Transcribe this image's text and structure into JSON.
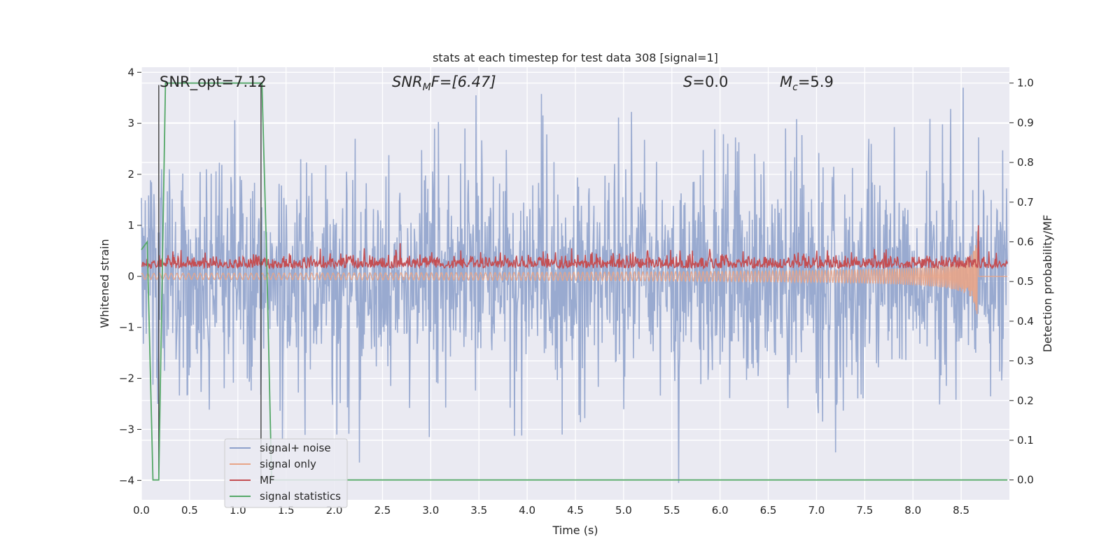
{
  "chart_data": {
    "type": "line",
    "title": "stats at each timestep for test data 308 [signal=1]",
    "xlabel": "Time (s)",
    "ylabel": "Whitened strain",
    "y2label": "Detection probability/MF",
    "xlim": [
      0.0,
      9.0
    ],
    "ylim": [
      -4.38,
      4.1
    ],
    "y2lim": [
      -0.05,
      1.04
    ],
    "xticks": [
      "0.0",
      "0.5",
      "1.0",
      "1.5",
      "2.0",
      "2.5",
      "3.0",
      "3.5",
      "4.0",
      "4.5",
      "5.0",
      "5.5",
      "6.0",
      "6.5",
      "7.0",
      "7.5",
      "8.0",
      "8.5"
    ],
    "yticks": [
      "4",
      "3",
      "2",
      "1",
      "0",
      "−1",
      "−2",
      "−3",
      "−4"
    ],
    "y2ticks": [
      "1.0",
      "0.9",
      "0.8",
      "0.7",
      "0.6",
      "0.5",
      "0.4",
      "0.3",
      "0.2",
      "0.1",
      "0.0"
    ],
    "grid": true,
    "legend_position": "lower-left",
    "annotations": {
      "snr_opt": "SNR_opt=7.12",
      "snr_mf_base": "SNR",
      "snr_mf_sub": "M",
      "snr_mf_rest": "F=[6.47]",
      "s_main": "S",
      "s_rest": "=0.0",
      "mc_main": "M",
      "mc_sub": "c",
      "mc_rest": "=5.9"
    },
    "series": [
      {
        "name": "signal+ noise",
        "color": "#8da0cb",
        "axis": "left",
        "x_range": [
          0.0,
          8.98
        ],
        "envelope_upper": [
          2.1,
          2.6,
          3.1,
          2.4,
          3.0,
          2.5,
          3.3,
          2.9,
          3.1,
          3.6,
          2.8,
          3.5,
          2.6,
          3.1,
          2.9,
          3.1,
          3.0,
          3.7,
          3.3,
          3.0
        ],
        "envelope_lower": [
          -2.5,
          -2.8,
          -2.9,
          -3.2,
          -3.1,
          -2.8,
          -3.6,
          -2.9,
          -3.4,
          -3.5,
          -3.0,
          -3.1,
          -4.0,
          -3.1,
          -3.4,
          -3.0,
          -2.9,
          -3.1,
          -2.9,
          -2.8
        ],
        "notable_peaks": [
          [
            2.26,
            -3.65
          ],
          [
            5.57,
            -4.05
          ],
          [
            8.52,
            3.7
          ],
          [
            3.47,
            3.55
          ],
          [
            7.2,
            -3.45
          ]
        ]
      },
      {
        "name": "signal only",
        "color": "#e8a487",
        "axis": "left",
        "description_points": [
          [
            0.0,
            0.0
          ],
          [
            4.0,
            0.05
          ],
          [
            6.0,
            0.15
          ],
          [
            7.0,
            0.25
          ],
          [
            7.5,
            0.35
          ],
          [
            8.0,
            0.45
          ],
          [
            8.5,
            0.6
          ],
          [
            8.68,
            0.85
          ],
          [
            8.68,
            0.0
          ],
          [
            8.98,
            0.0
          ]
        ]
      },
      {
        "name": "MF",
        "color": "#c44e52",
        "axis": "left",
        "baseline": 0.2,
        "amplitude": 0.3,
        "peaks": [
          [
            2.68,
            0.65
          ],
          [
            8.68,
            1.0
          ]
        ],
        "x_range": [
          0.0,
          8.98
        ]
      },
      {
        "name": "signal statistics",
        "color": "#55a868",
        "axis": "right",
        "x": [
          0.0,
          0.06,
          0.12,
          0.18,
          0.25,
          1.25,
          1.3,
          1.35,
          8.98
        ],
        "values": [
          0.58,
          0.6,
          0.0,
          0.0,
          1.0,
          1.0,
          0.55,
          0.0,
          0.0
        ]
      }
    ],
    "vlines": [
      {
        "x": 0.18,
        "ymin": -4.0,
        "ymax": 3.75
      },
      {
        "x": 1.24,
        "ymin": -4.0,
        "ymax": 3.75
      }
    ]
  }
}
